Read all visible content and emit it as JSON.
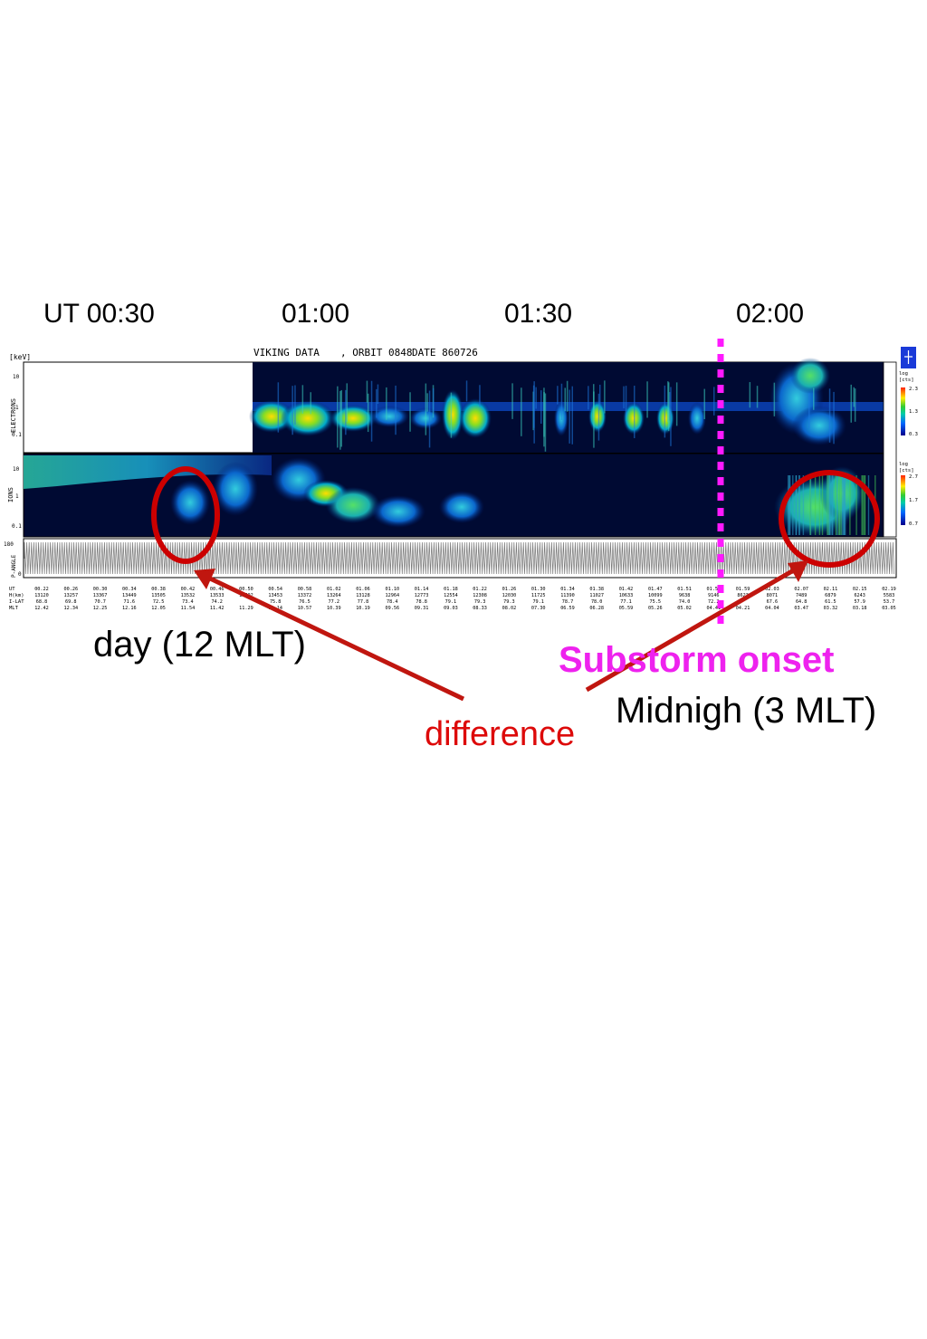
{
  "chart_data": {
    "type": "heatmap",
    "title": "VIKING DATA",
    "orbit": ", ORBIT 0848",
    "date": "DATE 860726",
    "time_axis_labels": [
      "UT 00:30",
      "01:00",
      "01:30",
      "02:00"
    ],
    "panels": [
      {
        "name": "ELECTRONS",
        "y_unit": "[keV]",
        "y_ticks": [
          "10",
          "1",
          "0.1"
        ],
        "colorbar": {
          "unit_top": "log",
          "unit_bottom": "[cts]",
          "ticks": [
            "2.3",
            "1.3",
            "0.3"
          ]
        }
      },
      {
        "name": "IONS",
        "y_ticks": [
          "10",
          "1",
          "0.1"
        ],
        "colorbar": {
          "unit_top": "log",
          "unit_bottom": "[cts]",
          "ticks": [
            "2.7",
            "1.7",
            "0.7"
          ]
        }
      },
      {
        "name": "P-ANGLE",
        "y_ticks": [
          "180",
          "0"
        ]
      }
    ],
    "ephemeris_row_labels": [
      "UT",
      "H(km)",
      "I-LAT",
      "MLT"
    ],
    "ephemeris": [
      {
        "ut": "00.22",
        "h": "13120",
        "ilat": "68.8",
        "mlt": "12.42"
      },
      {
        "ut": "00.26",
        "h": "13257",
        "ilat": "69.8",
        "mlt": "12.34"
      },
      {
        "ut": "00.30",
        "h": "13367",
        "ilat": "70.7",
        "mlt": "12.25"
      },
      {
        "ut": "00.34",
        "h": "13449",
        "ilat": "71.6",
        "mlt": "12.16"
      },
      {
        "ut": "00.38",
        "h": "13505",
        "ilat": "72.5",
        "mlt": "12.05"
      },
      {
        "ut": "00.42",
        "h": "13532",
        "ilat": "73.4",
        "mlt": "11.54"
      },
      {
        "ut": "00.46",
        "h": "13533",
        "ilat": "74.2",
        "mlt": "11.42"
      },
      {
        "ut": "00.50",
        "h": "13502",
        "ilat": "",
        "mlt": "11.29"
      },
      {
        "ut": "00.54",
        "h": "13453",
        "ilat": "75.8",
        "mlt": "11.14"
      },
      {
        "ut": "00.58",
        "h": "13372",
        "ilat": "76.5",
        "mlt": "10.57"
      },
      {
        "ut": "01.02",
        "h": "13264",
        "ilat": "77.2",
        "mlt": "10.39"
      },
      {
        "ut": "01.06",
        "h": "13128",
        "ilat": "77.8",
        "mlt": "10.19"
      },
      {
        "ut": "01.10",
        "h": "12964",
        "ilat": "78.4",
        "mlt": "09.56"
      },
      {
        "ut": "01.14",
        "h": "12773",
        "ilat": "78.8",
        "mlt": "09.31"
      },
      {
        "ut": "01.18",
        "h": "12554",
        "ilat": "79.1",
        "mlt": "09.03"
      },
      {
        "ut": "01.22",
        "h": "12308",
        "ilat": "79.3",
        "mlt": "08.33"
      },
      {
        "ut": "01.26",
        "h": "12030",
        "ilat": "79.3",
        "mlt": "08.02"
      },
      {
        "ut": "01.30",
        "h": "11725",
        "ilat": "79.1",
        "mlt": "07.30"
      },
      {
        "ut": "01.34",
        "h": "11390",
        "ilat": "78.7",
        "mlt": "06.59"
      },
      {
        "ut": "01.38",
        "h": "11027",
        "ilat": "78.0",
        "mlt": "06.28"
      },
      {
        "ut": "01.42",
        "h": "10633",
        "ilat": "77.1",
        "mlt": "05.59"
      },
      {
        "ut": "01.47",
        "h": "10099",
        "ilat": "75.5",
        "mlt": "05.26"
      },
      {
        "ut": "01.51",
        "h": "9638",
        "ilat": "74.0",
        "mlt": "05.02"
      },
      {
        "ut": "01.55",
        "h": "9146",
        "ilat": "72.2",
        "mlt": "04.41"
      },
      {
        "ut": "01.59",
        "h": "8623",
        "ilat": "",
        "mlt": "04.21"
      },
      {
        "ut": "02.03",
        "h": "8071",
        "ilat": "67.6",
        "mlt": "04.04"
      },
      {
        "ut": "02.07",
        "h": "7489",
        "ilat": "64.8",
        "mlt": "03.47"
      },
      {
        "ut": "02.11",
        "h": "6879",
        "ilat": "61.5",
        "mlt": "03.32"
      },
      {
        "ut": "02.15",
        "h": "6243",
        "ilat": "57.9",
        "mlt": "03.18"
      },
      {
        "ut": "02.19",
        "h": "5583",
        "ilat": "53.7",
        "mlt": "03.05"
      }
    ],
    "onset_ut": "01:56",
    "colors": {
      "background": "#00062a",
      "onset_line": "#ff19ff",
      "circle": "#cc0000",
      "arrow": "#c0160f"
    }
  },
  "annotations": {
    "day": "day (12 MLT)",
    "substorm": "Substorm onset",
    "midnight": "Midnigh (3 MLT)",
    "difference": "difference"
  },
  "colors": {
    "substorm": "#ee22ee",
    "difference": "#dd0a0a",
    "text": "#000000"
  }
}
